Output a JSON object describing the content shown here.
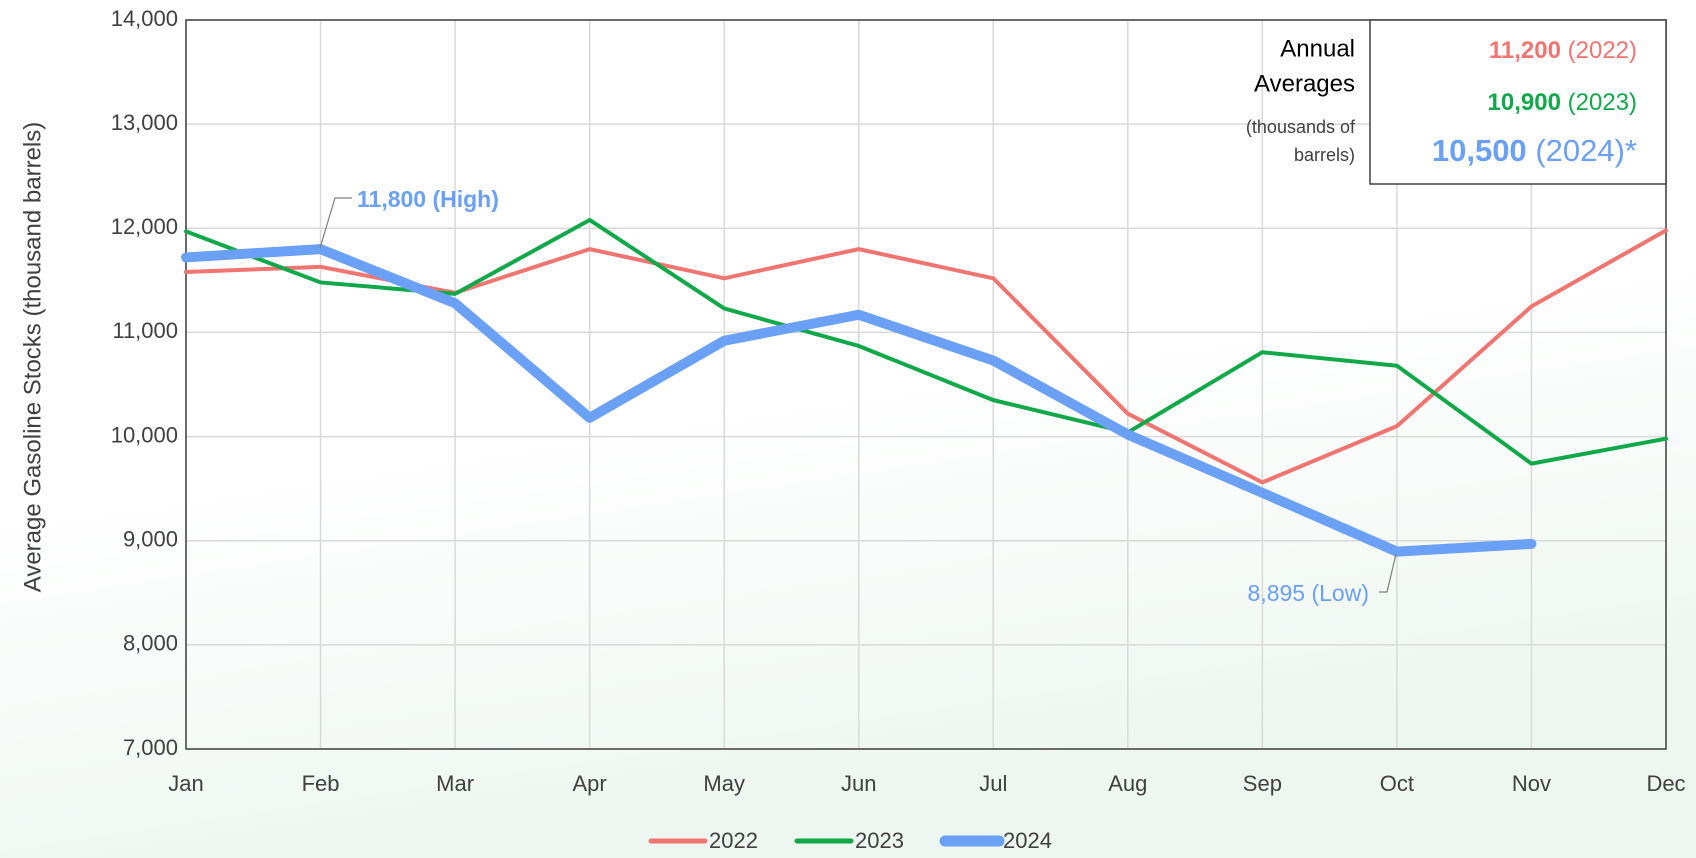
{
  "chart_data": {
    "type": "line",
    "y_label": "Average Gasoline Stocks (thousand barrels)",
    "categories": [
      "Jan",
      "Feb",
      "Mar",
      "Apr",
      "May",
      "Jun",
      "Jul",
      "Aug",
      "Sep",
      "Oct",
      "Nov",
      "Dec"
    ],
    "series": [
      {
        "name": "2022",
        "color": "#f07470",
        "values": [
          11580,
          11630,
          11380,
          11800,
          11520,
          11800,
          11520,
          10220,
          9560,
          10100,
          11250,
          11980
        ]
      },
      {
        "name": "2023",
        "color": "#11a84a",
        "values": [
          11970,
          11480,
          11370,
          12080,
          11230,
          10870,
          10350,
          10040,
          10810,
          10680,
          9740,
          9980
        ]
      },
      {
        "name": "2024",
        "color": "#6aa0f5",
        "values": [
          11720,
          11800,
          11280,
          10180,
          10920,
          11170,
          10730,
          10020,
          9460,
          8895,
          8970,
          null
        ]
      }
    ],
    "ylim": [
      7000,
      14000
    ],
    "yticks": [
      {
        "value": 7000,
        "label": "7,000"
      },
      {
        "value": 8000,
        "label": "8,000"
      },
      {
        "value": 9000,
        "label": "9,000"
      },
      {
        "value": 10000,
        "label": "10,000"
      },
      {
        "value": 11000,
        "label": "11,000"
      },
      {
        "value": 12000,
        "label": "12,000"
      },
      {
        "value": 13000,
        "label": "13,000"
      },
      {
        "value": 14000,
        "label": "14,000"
      }
    ],
    "grid": true,
    "legend": "bottom",
    "annotations": [
      "11,800 (High)",
      "8,895 (Low)"
    ],
    "averages_box": {
      "title_lines": [
        "Annual",
        "Averages"
      ],
      "note_lines": [
        "(thousands of",
        "barrels)"
      ],
      "entries": [
        {
          "value": "11,200",
          "year": "(2022)"
        },
        {
          "value": "10,900",
          "year": "(2023)"
        },
        {
          "value": "10,500",
          "year": "(2024)*"
        }
      ]
    }
  }
}
